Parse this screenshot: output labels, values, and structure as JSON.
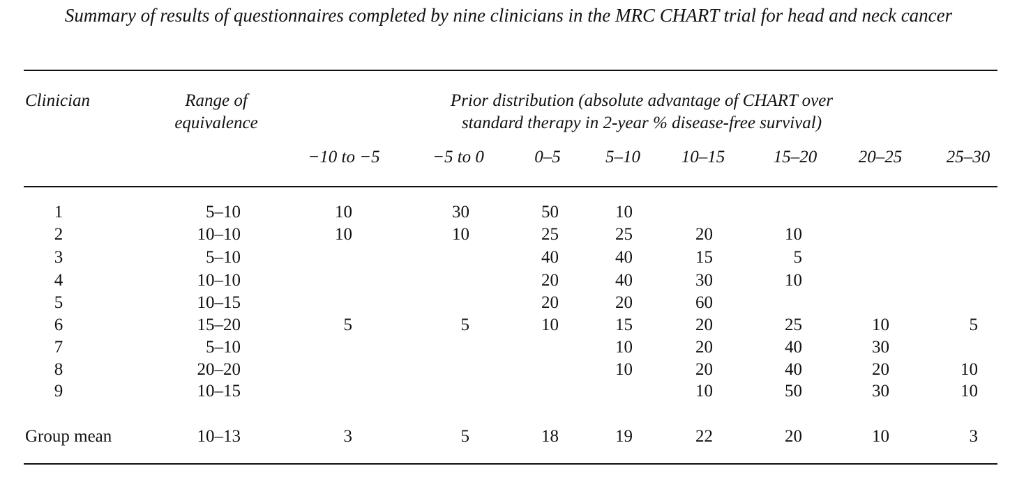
{
  "title": "Summary of results of questionnaires completed by nine clinicians in the MRC CHART trial for head and neck cancer",
  "headers": {
    "clinician": "Clinician",
    "range_line1": "Range of",
    "range_line2": "equivalence",
    "prior_line1": "Prior distribution (absolute advantage of CHART over",
    "prior_line2": "standard therapy in 2-year % disease-free survival)"
  },
  "intervals": [
    "−10 to −5",
    "−5 to 0",
    "0–5",
    "5–10",
    "10–15",
    "15–20",
    "20–25",
    "25–30"
  ],
  "rows": [
    {
      "clinician": "1",
      "range": "5–10",
      "values": [
        "10",
        "30",
        "50",
        "10",
        "",
        "",
        "",
        ""
      ]
    },
    {
      "clinician": "2",
      "range": "10–10",
      "values": [
        "10",
        "10",
        "25",
        "25",
        "20",
        "10",
        "",
        ""
      ]
    },
    {
      "clinician": "3",
      "range": "5–10",
      "values": [
        "",
        "",
        "40",
        "40",
        "15",
        "5",
        "",
        ""
      ]
    },
    {
      "clinician": "4",
      "range": "10–10",
      "values": [
        "",
        "",
        "20",
        "40",
        "30",
        "10",
        "",
        ""
      ]
    },
    {
      "clinician": "5",
      "range": "10–15",
      "values": [
        "",
        "",
        "20",
        "20",
        "60",
        "",
        "",
        ""
      ]
    },
    {
      "clinician": "6",
      "range": "15–20",
      "values": [
        "5",
        "5",
        "10",
        "15",
        "20",
        "25",
        "10",
        "5"
      ]
    },
    {
      "clinician": "7",
      "range": "5–10",
      "values": [
        "",
        "",
        "",
        "10",
        "20",
        "40",
        "30",
        ""
      ]
    },
    {
      "clinician": "8",
      "range": "20–20",
      "values": [
        "",
        "",
        "",
        "10",
        "20",
        "40",
        "20",
        "10"
      ]
    },
    {
      "clinician": "9",
      "range": "10–15",
      "values": [
        "",
        "",
        "",
        "",
        "10",
        "50",
        "30",
        "10"
      ]
    }
  ],
  "group_mean": {
    "label": "Group mean",
    "range": "10–13",
    "values": [
      "3",
      "5",
      "18",
      "19",
      "22",
      "20",
      "10",
      "3"
    ]
  }
}
